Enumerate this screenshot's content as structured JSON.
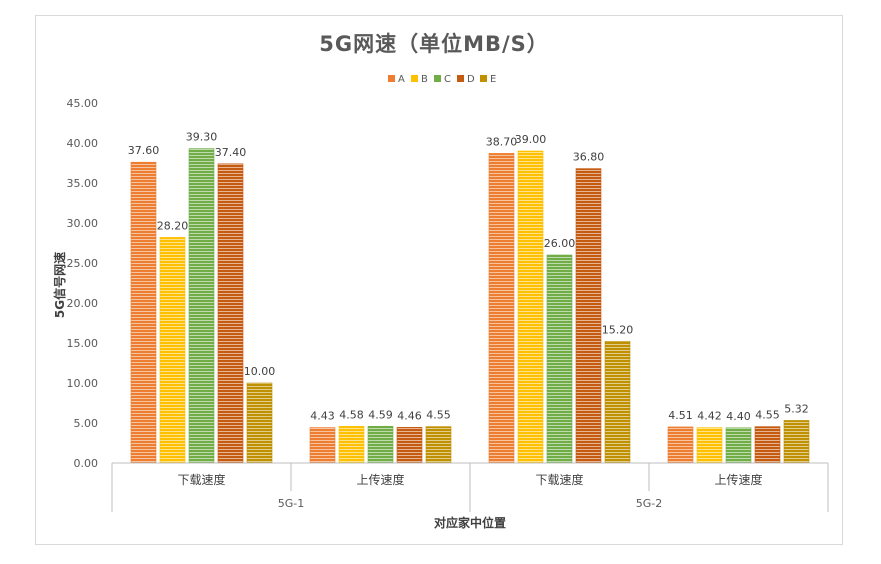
{
  "chart_data": {
    "type": "bar",
    "title": "5G网速（单位MB/S）",
    "xlabel": "对应家中位置",
    "ylabel": "5G信号网速",
    "ylim": [
      0,
      45
    ],
    "yticks": [
      "0.00",
      "5.00",
      "10.00",
      "15.00",
      "20.00",
      "25.00",
      "30.00",
      "35.00",
      "40.00",
      "45.00"
    ],
    "legend_position": "top",
    "groups": [
      "5G-1",
      "5G-2"
    ],
    "categories": [
      "下载速度",
      "上传速度",
      "下载速度",
      "上传速度"
    ],
    "category_group_index": [
      0,
      0,
      1,
      1
    ],
    "series": [
      {
        "name": "A",
        "color": "#ed7d31",
        "values": [
          37.6,
          4.43,
          38.7,
          4.51
        ],
        "labels": [
          "37.60",
          "4.43",
          "38.70",
          "4.51"
        ]
      },
      {
        "name": "B",
        "color": "#ffc000",
        "values": [
          28.2,
          4.58,
          39.0,
          4.42
        ],
        "labels": [
          "28.20",
          "4.58",
          "39.00",
          "4.42"
        ]
      },
      {
        "name": "C",
        "color": "#70ad47",
        "values": [
          39.3,
          4.59,
          26.0,
          4.4
        ],
        "labels": [
          "39.30",
          "4.59",
          "26.00",
          "4.40"
        ]
      },
      {
        "name": "D",
        "color": "#c55a11",
        "values": [
          37.4,
          4.46,
          36.8,
          4.55
        ],
        "labels": [
          "37.40",
          "4.46",
          "36.80",
          "4.55"
        ]
      },
      {
        "name": "E",
        "color": "#bf9000",
        "values": [
          10.0,
          4.55,
          15.2,
          5.32
        ],
        "labels": [
          "10.00",
          "4.55",
          "15.20",
          "5.32"
        ]
      }
    ],
    "grid": false
  }
}
